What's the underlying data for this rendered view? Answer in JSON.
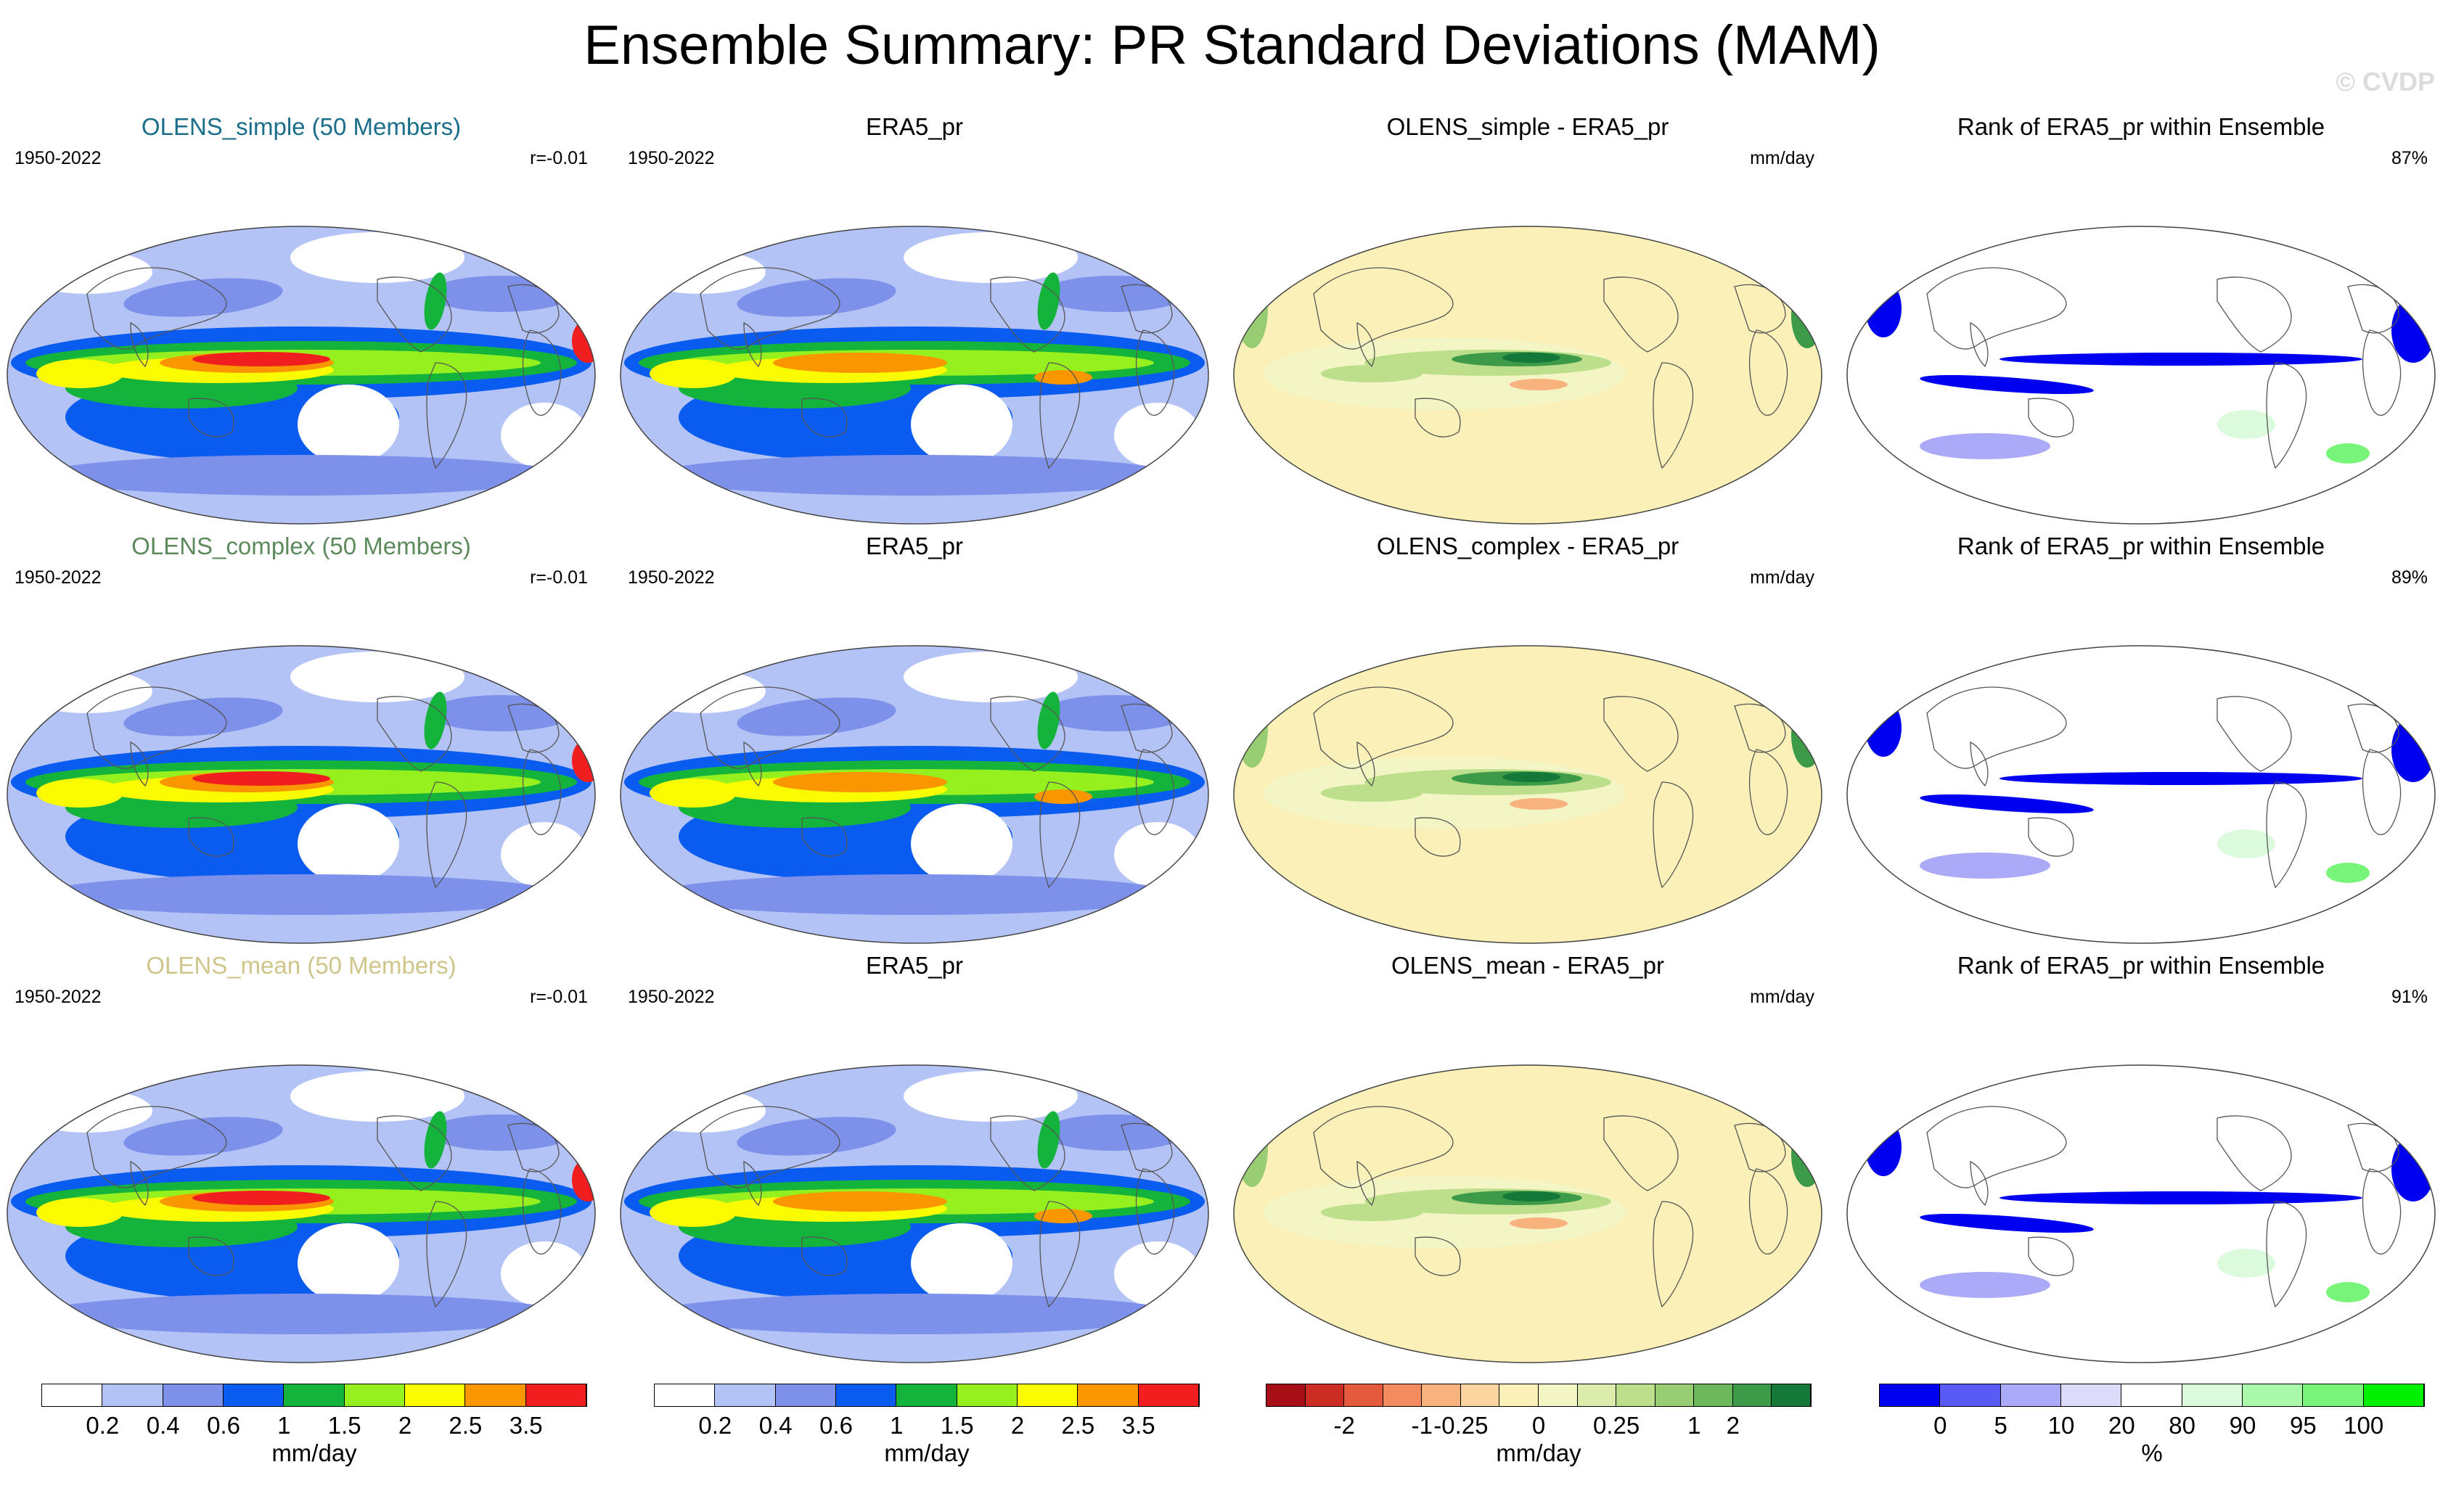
{
  "title": "Ensemble Summary: PR Standard Deviations (MAM)",
  "watermark": "© CVDP",
  "chart_data": {
    "type": "heatmap",
    "projection": "robinson-global-maps",
    "rows": [
      {
        "ensemble": {
          "name": "OLENS_simple (50 Members)",
          "color": "#1a6e8a",
          "period": "1950-2022",
          "pattern_corr": "r=-0.01"
        },
        "observed": {
          "name": "ERA5_pr",
          "period": "1950-2022"
        },
        "difference": {
          "name": "OLENS_simple - ERA5_pr",
          "units": "mm/day"
        },
        "rank": {
          "name": "Rank of ERA5_pr within Ensemble",
          "pct": "87%"
        }
      },
      {
        "ensemble": {
          "name": "OLENS_complex (50 Members)",
          "color": "#5d8a5d",
          "period": "1950-2022",
          "pattern_corr": "r=-0.01"
        },
        "observed": {
          "name": "ERA5_pr",
          "period": "1950-2022"
        },
        "difference": {
          "name": "OLENS_complex - ERA5_pr",
          "units": "mm/day"
        },
        "rank": {
          "name": "Rank of ERA5_pr within Ensemble",
          "pct": "89%"
        }
      },
      {
        "ensemble": {
          "name": "OLENS_mean (50 Members)",
          "color": "#cfc58a",
          "period": "1950-2022",
          "pattern_corr": "r=-0.01"
        },
        "observed": {
          "name": "ERA5_pr",
          "period": "1950-2022"
        },
        "difference": {
          "name": "OLENS_mean - ERA5_pr",
          "units": "mm/day"
        },
        "rank": {
          "name": "Rank of ERA5_pr within Ensemble",
          "pct": "91%"
        }
      }
    ],
    "colorbars": [
      {
        "units": "mm/day",
        "ticks": [
          "0.2",
          "0.4",
          "0.6",
          "1",
          "1.5",
          "2",
          "2.5",
          "3.5"
        ],
        "colors": [
          "#ffffff",
          "#b4c3f5",
          "#7d91eb",
          "#0a5cf0",
          "#14b43c",
          "#96f01e",
          "#fafa00",
          "#fa9600",
          "#f01e1e"
        ]
      },
      {
        "units": "mm/day",
        "ticks": [
          "0.2",
          "0.4",
          "0.6",
          "1",
          "1.5",
          "2",
          "2.5",
          "3.5"
        ],
        "colors": [
          "#ffffff",
          "#b4c3f5",
          "#7d91eb",
          "#0a5cf0",
          "#14b43c",
          "#96f01e",
          "#fafa00",
          "#fa9600",
          "#f01e1e"
        ]
      },
      {
        "units": "mm/day",
        "ticks": [
          "-2",
          "-1",
          "-0.25",
          "0",
          "0.25",
          "1",
          "2"
        ],
        "colors": [
          "#a50f15",
          "#cb2d24",
          "#e45a3c",
          "#f48a5f",
          "#f8b27e",
          "#fbd49f",
          "#fbf0b7",
          "#f3f5c4",
          "#dcecac",
          "#bddf8c",
          "#98cd74",
          "#6cb65c",
          "#3c9a48",
          "#137838"
        ]
      },
      {
        "units": "%",
        "ticks": [
          "0",
          "5",
          "10",
          "20",
          "80",
          "90",
          "95",
          "100"
        ],
        "colors": [
          "#0000f0",
          "#5a5af5",
          "#aaaaf8",
          "#dcdcfa",
          "#ffffff",
          "#dcfadc",
          "#aaf8aa",
          "#78f478",
          "#00f000"
        ]
      }
    ]
  }
}
